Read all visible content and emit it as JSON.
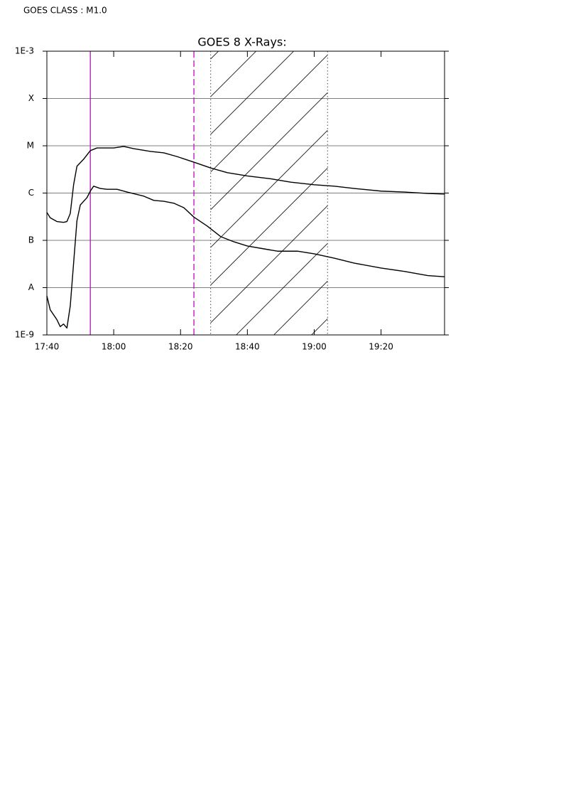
{
  "header": {
    "text": "GOES CLASS : M1.0"
  },
  "chart_data": {
    "type": "line",
    "title": "GOES 8 X-Rays:",
    "log_y": true,
    "grid": true,
    "ylim": [
      1e-09,
      0.001
    ],
    "yticks": [
      {
        "value": 0.001,
        "label": "1E-3"
      },
      {
        "value": 0.0001,
        "label": "X"
      },
      {
        "value": 1e-05,
        "label": "M"
      },
      {
        "value": 1e-06,
        "label": "C"
      },
      {
        "value": 1e-07,
        "label": "B"
      },
      {
        "value": 1e-08,
        "label": "A"
      },
      {
        "value": 1e-09,
        "label": "1E-9"
      }
    ],
    "xlim": [
      "17:40",
      "19:39"
    ],
    "xticks": [
      "17:40",
      "18:00",
      "18:20",
      "18:40",
      "19:00",
      "19:20"
    ],
    "series": [
      {
        "color": "#000000",
        "x": [
          "17:40",
          "17:41",
          "17:43",
          "17:45",
          "17:46",
          "17:47",
          "17:48",
          "17:49",
          "17:51",
          "17:53",
          "17:55",
          "17:57",
          "18:00",
          "18:03",
          "18:06",
          "18:11",
          "18:15",
          "18:19",
          "18:24",
          "18:29",
          "18:34",
          "18:40",
          "18:47",
          "18:53",
          "19:00",
          "19:06",
          "19:12",
          "19:20",
          "19:27",
          "19:34",
          "19:39"
        ],
        "values": [
          3.9e-07,
          3e-07,
          2.5e-07,
          2.4e-07,
          2.5e-07,
          3.7e-07,
          1.5e-06,
          3.7e-06,
          5.2e-06,
          7.9e-06,
          9e-06,
          9e-06,
          9e-06,
          9.7e-06,
          8.7e-06,
          7.6e-06,
          7.1e-06,
          5.9e-06,
          4.5e-06,
          3.4e-06,
          2.7e-06,
          2.3e-06,
          2e-06,
          1.7e-06,
          1.5e-06,
          1.4e-06,
          1.25e-06,
          1.1e-06,
          1.05e-06,
          9.8e-07,
          9.5e-07
        ]
      },
      {
        "color": "#000000",
        "x": [
          "17:40",
          "17:41",
          "17:43",
          "17:44",
          "17:45",
          "17:46",
          "17:47",
          "17:48",
          "17:49",
          "17:50",
          "17:52",
          "17:53",
          "17:54",
          "17:56",
          "17:58",
          "18:01",
          "18:04",
          "18:09",
          "18:12",
          "18:15",
          "18:18",
          "18:21",
          "18:24",
          "18:28",
          "18:32",
          "18:36",
          "18:40",
          "18:45",
          "18:49",
          "18:55",
          "19:00",
          "19:06",
          "19:12",
          "19:20",
          "19:27",
          "19:34",
          "19:39"
        ],
        "values": [
          6.7e-09,
          3.4e-09,
          2.1e-09,
          1.5e-09,
          1.7e-09,
          1.4e-09,
          4.1e-09,
          3.3e-08,
          2.6e-07,
          5.6e-07,
          8e-07,
          1.1e-06,
          1.4e-06,
          1.25e-06,
          1.2e-06,
          1.2e-06,
          1.05e-06,
          8.6e-07,
          7e-07,
          6.7e-07,
          6.1e-07,
          4.9e-07,
          3.1e-07,
          2e-07,
          1.2e-07,
          9.3e-08,
          7.6e-08,
          6.6e-08,
          5.9e-08,
          5.9e-08,
          5.2e-08,
          4.2e-08,
          3.3e-08,
          2.6e-08,
          2.2e-08,
          1.8e-08,
          1.7e-08
        ]
      }
    ],
    "markers": [
      {
        "x": "17:53",
        "color": "#cc00cc",
        "style": "solid"
      },
      {
        "x": "18:24",
        "color": "#cc00cc",
        "style": "dashed"
      },
      {
        "x": "18:29",
        "color": "#666666",
        "style": "dotted"
      },
      {
        "x": "19:04",
        "color": "#666666",
        "style": "dotted"
      }
    ],
    "shaded": {
      "x": [
        "18:29",
        "19:04"
      ],
      "color": "#000000"
    }
  }
}
